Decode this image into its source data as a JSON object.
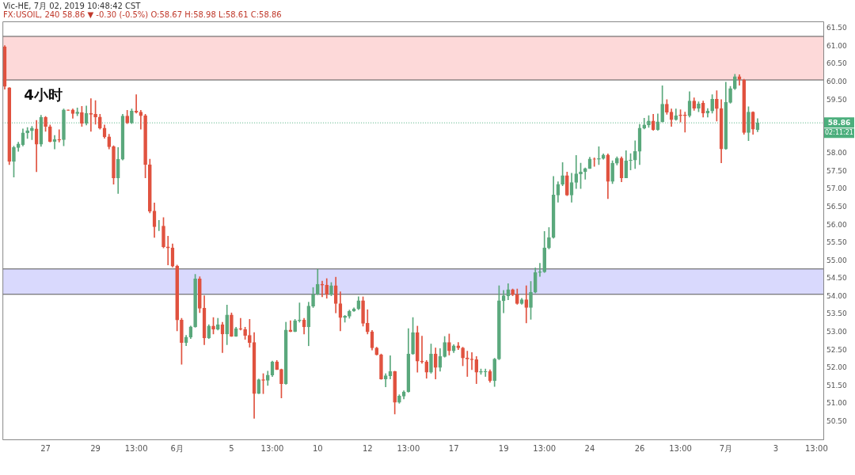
{
  "chart_data": {
    "type": "candlestick",
    "title": "Vic-HE, 7月 02, 2019 10:48:42 CST",
    "subtitle": "FX:USOIL, 240 58.86 ▼ -0.30 (-0.5%) O:58.67 H:58.98 L:58.61 C:58.86",
    "categories": [
      null,
      null,
      null,
      null,
      null,
      null,
      null,
      null,
      null,
      "27",
      null,
      null,
      null,
      null,
      null,
      null,
      null,
      null,
      null,
      null,
      "29",
      null,
      null,
      null,
      null,
      null,
      null,
      null,
      null,
      "13:00",
      null,
      null,
      null,
      null,
      null,
      null,
      null,
      null,
      "6月",
      null,
      null,
      null,
      null,
      null,
      null,
      null,
      null,
      null,
      null,
      null,
      "5",
      null,
      null,
      null,
      null,
      null,
      null,
      null,
      null,
      "13:00",
      null,
      null,
      null,
      null,
      null,
      null,
      null,
      null,
      null,
      "10",
      null,
      null,
      null,
      null,
      null,
      null,
      null,
      null,
      null,
      null,
      "12",
      null,
      null,
      null,
      null,
      null,
      null,
      null,
      null,
      "13:00",
      null,
      null,
      null,
      null,
      null,
      null,
      null,
      null,
      null,
      "17",
      null,
      null,
      null,
      null,
      null,
      null,
      null,
      null,
      null,
      null,
      "19",
      null,
      null,
      null,
      null,
      null,
      null,
      null,
      null,
      "13:00",
      null,
      null,
      null,
      null,
      null,
      null,
      null,
      null,
      null,
      "24",
      null,
      null,
      null,
      null,
      null,
      null,
      null,
      null,
      null,
      null,
      "26",
      null,
      null,
      null,
      null,
      null,
      null,
      null,
      null,
      "13:00",
      null,
      null,
      null,
      null,
      null,
      null,
      null,
      null,
      null,
      "7月",
      null,
      null,
      null,
      null,
      null,
      null,
      null,
      null,
      null,
      null,
      "3",
      null,
      null,
      null,
      null,
      null,
      null,
      null,
      null,
      "13:00",
      null
    ],
    "ohlc": [
      [
        60.99,
        61.02,
        59.8,
        59.88
      ],
      [
        59.84,
        59.85,
        57.69,
        57.78
      ],
      [
        57.78,
        58.21,
        57.34,
        58.17
      ],
      [
        58.17,
        58.32,
        58.06,
        58.27
      ],
      [
        58.25,
        58.69,
        58.21,
        58.58
      ],
      [
        58.58,
        58.73,
        58.42,
        58.64
      ],
      [
        58.64,
        58.76,
        58.39,
        58.71
      ],
      [
        58.69,
        58.93,
        57.49,
        58.26
      ],
      [
        58.26,
        59.07,
        58.2,
        59.01
      ],
      [
        59.01,
        59.04,
        58.62,
        58.76
      ],
      [
        58.75,
        58.8,
        58.32,
        58.34
      ],
      [
        58.34,
        58.51,
        58.13,
        58.39
      ],
      [
        58.39,
        58.67,
        58.32,
        58.38
      ],
      [
        58.39,
        59.25,
        58.22,
        59.22
      ],
      [
        59.22,
        59.22,
        59.21,
        59.21
      ],
      [
        59.22,
        59.25,
        58.99,
        59.12
      ],
      [
        59.12,
        59.28,
        59.06,
        59.16
      ],
      [
        59.15,
        59.32,
        58.76,
        58.85
      ],
      [
        58.85,
        59.33,
        58.8,
        59.12
      ],
      [
        59.12,
        59.54,
        58.62,
        59.1
      ],
      [
        59.1,
        59.48,
        58.82,
        59.02
      ],
      [
        59.02,
        59.1,
        58.68,
        58.71
      ],
      [
        58.71,
        58.8,
        58.43,
        58.47
      ],
      [
        58.47,
        58.54,
        58.13,
        58.19
      ],
      [
        58.19,
        58.22,
        57.14,
        57.32
      ],
      [
        57.32,
        58.17,
        56.88,
        57.84
      ],
      [
        57.84,
        59.1,
        57.82,
        59.05
      ],
      [
        59.05,
        59.21,
        58.84,
        58.86
      ],
      [
        58.86,
        59.25,
        58.84,
        59.19
      ],
      [
        59.19,
        59.65,
        59.13,
        59.16
      ],
      [
        59.16,
        59.21,
        58.68,
        59.06
      ],
      [
        59.06,
        59.1,
        57.32,
        57.69
      ],
      [
        57.69,
        57.84,
        56.34,
        56.39
      ],
      [
        56.39,
        56.62,
        55.65,
        55.95
      ],
      [
        55.97,
        56.13,
        55.84,
        55.97
      ],
      [
        55.97,
        56.21,
        55.36,
        55.39
      ],
      [
        55.39,
        55.69,
        54.88,
        55.36
      ],
      [
        55.36,
        55.47,
        54.82,
        54.85
      ],
      [
        54.85,
        54.88,
        53.04,
        53.34
      ],
      [
        53.34,
        53.39,
        52.1,
        52.71
      ],
      [
        52.71,
        52.91,
        52.62,
        52.86
      ],
      [
        52.86,
        53.17,
        52.82,
        53.15
      ],
      [
        53.15,
        54.62,
        53.14,
        54.49
      ],
      [
        54.49,
        54.55,
        53.55,
        53.67
      ],
      [
        53.67,
        54.02,
        52.65,
        52.84
      ],
      [
        52.84,
        53.21,
        52.82,
        53.17
      ],
      [
        53.17,
        53.41,
        52.95,
        53.08
      ],
      [
        53.08,
        53.39,
        53.06,
        53.21
      ],
      [
        53.21,
        53.28,
        52.43,
        52.95
      ],
      [
        52.95,
        53.76,
        52.65,
        53.48
      ],
      [
        53.48,
        53.54,
        52.88,
        52.88
      ],
      [
        52.88,
        53.14,
        52.88,
        53.1
      ],
      [
        53.1,
        53.39,
        53.06,
        53.08
      ],
      [
        53.08,
        53.14,
        52.8,
        52.91
      ],
      [
        52.91,
        53.36,
        52.58,
        52.71
      ],
      [
        52.71,
        52.99,
        50.59,
        51.28
      ],
      [
        51.28,
        51.69,
        51.28,
        51.67
      ],
      [
        51.67,
        51.84,
        51.28,
        51.65
      ],
      [
        51.65,
        51.91,
        51.51,
        51.8
      ],
      [
        51.8,
        52.19,
        51.76,
        52.17
      ],
      [
        52.17,
        52.21,
        51.95,
        51.96
      ],
      [
        51.96,
        51.97,
        51.16,
        51.56
      ],
      [
        51.56,
        53.28,
        51.54,
        53.06
      ],
      [
        53.06,
        53.32,
        53.01,
        53.02
      ],
      [
        53.02,
        53.36,
        53.01,
        53.32
      ],
      [
        53.32,
        53.82,
        53.28,
        53.34
      ],
      [
        53.34,
        53.39,
        52.95,
        53.15
      ],
      [
        53.15,
        53.84,
        52.62,
        53.73
      ],
      [
        53.73,
        54.25,
        53.69,
        54.06
      ],
      [
        54.06,
        54.76,
        54.05,
        54.34
      ],
      [
        54.34,
        54.43,
        53.99,
        54.32
      ],
      [
        54.32,
        54.5,
        53.95,
        54.06
      ],
      [
        54.06,
        54.39,
        54.02,
        54.3
      ],
      [
        54.3,
        54.54,
        53.54,
        53.8
      ],
      [
        53.8,
        54.13,
        53.04,
        53.41
      ],
      [
        53.41,
        53.47,
        53.28,
        53.45
      ],
      [
        53.45,
        53.62,
        53.39,
        53.59
      ],
      [
        53.59,
        53.68,
        53.58,
        53.65
      ],
      [
        53.65,
        53.99,
        53.63,
        53.88
      ],
      [
        53.88,
        53.99,
        53.17,
        53.25
      ],
      [
        53.25,
        53.63,
        52.95,
        53.01
      ],
      [
        53.01,
        53.05,
        52.5,
        52.56
      ],
      [
        52.56,
        52.58,
        52.36,
        52.37
      ],
      [
        52.37,
        52.39,
        51.68,
        51.69
      ],
      [
        51.69,
        51.84,
        51.47,
        51.78
      ],
      [
        51.78,
        52.34,
        51.69,
        51.9
      ],
      [
        51.9,
        51.91,
        50.71,
        51.04
      ],
      [
        51.04,
        51.25,
        51.01,
        51.21
      ],
      [
        51.21,
        51.36,
        51.13,
        51.33
      ],
      [
        51.33,
        53.1,
        51.32,
        52.39
      ],
      [
        52.39,
        53.41,
        52.38,
        52.99
      ],
      [
        52.99,
        53.17,
        51.88,
        52.19
      ],
      [
        52.19,
        52.89,
        52.13,
        52.17
      ],
      [
        52.17,
        52.21,
        51.71,
        51.88
      ],
      [
        51.88,
        52.67,
        51.85,
        52.39
      ],
      [
        52.39,
        52.56,
        51.69,
        52.01
      ],
      [
        52.01,
        52.54,
        51.91,
        52.32
      ],
      [
        52.32,
        52.88,
        52.3,
        52.71
      ],
      [
        52.71,
        52.95,
        52.36,
        52.48
      ],
      [
        52.48,
        52.65,
        52.43,
        52.62
      ],
      [
        52.62,
        52.71,
        52.51,
        52.56
      ],
      [
        52.56,
        52.58,
        52.06,
        52.28
      ],
      [
        52.28,
        52.47,
        51.76,
        52.25
      ],
      [
        52.25,
        52.43,
        51.95,
        52.23
      ],
      [
        52.23,
        52.32,
        51.56,
        51.88
      ],
      [
        51.88,
        51.97,
        51.82,
        51.9
      ],
      [
        51.89,
        51.97,
        51.76,
        51.9
      ],
      [
        51.9,
        51.95,
        51.6,
        51.64
      ],
      [
        51.64,
        52.27,
        51.48,
        52.25
      ],
      [
        52.25,
        54.3,
        52.23,
        53.88
      ],
      [
        53.88,
        54.17,
        53.54,
        54.02
      ],
      [
        54.02,
        54.36,
        53.91,
        54.19
      ],
      [
        54.19,
        54.21,
        54.02,
        54.05
      ],
      [
        54.05,
        54.21,
        53.78,
        53.8
      ],
      [
        53.8,
        53.95,
        53.78,
        53.91
      ],
      [
        53.91,
        54.3,
        53.26,
        53.69
      ],
      [
        53.69,
        54.42,
        53.36,
        54.12
      ],
      [
        54.12,
        54.8,
        54.1,
        54.67
      ],
      [
        54.67,
        54.93,
        54.56,
        54.69
      ],
      [
        54.69,
        55.82,
        54.67,
        55.36
      ],
      [
        55.36,
        55.93,
        55.33,
        55.65
      ],
      [
        55.65,
        57.36,
        55.63,
        56.84
      ],
      [
        56.84,
        57.21,
        56.64,
        57.14
      ],
      [
        57.14,
        57.75,
        57.1,
        57.38
      ],
      [
        57.38,
        57.48,
        56.82,
        56.84
      ],
      [
        56.84,
        57.45,
        56.64,
        57.19
      ],
      [
        57.19,
        57.95,
        57.02,
        57.43
      ],
      [
        57.43,
        57.73,
        57.02,
        57.49
      ],
      [
        57.49,
        57.6,
        57.28,
        57.58
      ],
      [
        57.58,
        57.9,
        57.58,
        57.85
      ],
      [
        57.85,
        57.88,
        57.64,
        57.84
      ],
      [
        57.84,
        58.19,
        57.69,
        57.86
      ],
      [
        57.86,
        57.99,
        57.84,
        57.96
      ],
      [
        57.96,
        57.99,
        56.74,
        57.22
      ],
      [
        57.22,
        57.8,
        57.16,
        57.73
      ],
      [
        57.73,
        57.91,
        57.68,
        57.87
      ],
      [
        57.87,
        57.91,
        57.21,
        57.32
      ],
      [
        57.32,
        58.08,
        57.32,
        57.8
      ],
      [
        57.8,
        58.0,
        57.54,
        57.82
      ],
      [
        57.82,
        58.36,
        57.58,
        58.06
      ],
      [
        58.06,
        58.82,
        57.69,
        58.71
      ],
      [
        58.71,
        58.99,
        58.69,
        58.8
      ],
      [
        58.8,
        59.06,
        58.73,
        58.91
      ],
      [
        58.91,
        59.1,
        58.65,
        58.67
      ],
      [
        58.67,
        59.11,
        58.65,
        58.89
      ],
      [
        58.89,
        59.9,
        58.88,
        59.38
      ],
      [
        59.38,
        59.51,
        59.1,
        59.16
      ],
      [
        59.16,
        59.25,
        58.76,
        58.95
      ],
      [
        58.95,
        59.25,
        58.93,
        59.06
      ],
      [
        59.08,
        59.23,
        58.88,
        59.06
      ],
      [
        59.08,
        59.16,
        58.6,
        59.06
      ],
      [
        59.06,
        59.73,
        59.02,
        59.47
      ],
      [
        59.47,
        59.56,
        59.21,
        59.27
      ],
      [
        59.27,
        59.45,
        59.17,
        59.39
      ],
      [
        59.41,
        59.47,
        59.02,
        59.13
      ],
      [
        59.13,
        59.26,
        59.02,
        59.19
      ],
      [
        59.19,
        59.65,
        59.13,
        59.52
      ],
      [
        59.52,
        59.76,
        58.91,
        59.26
      ],
      [
        59.26,
        59.51,
        57.74,
        58.13
      ],
      [
        58.13,
        60.0,
        58.12,
        59.43
      ],
      [
        59.43,
        59.88,
        59.41,
        59.82
      ],
      [
        59.82,
        60.22,
        59.79,
        60.15
      ],
      [
        60.15,
        60.21,
        59.91,
        60.08
      ],
      [
        60.06,
        60.08,
        58.54,
        58.59
      ],
      [
        58.59,
        59.31,
        58.36,
        59.16
      ],
      [
        59.16,
        59.17,
        58.54,
        58.68
      ],
      [
        58.67,
        58.98,
        58.61,
        58.86
      ],
      null,
      null,
      null,
      null,
      null,
      null,
      null,
      null,
      null,
      null,
      null,
      null,
      null,
      null
    ],
    "ylim": [
      50.0,
      61.7
    ],
    "yticks": [
      {
        "value": 50.5,
        "label": "50.50"
      },
      {
        "value": 51,
        "label": "51.00"
      },
      {
        "value": 51.5,
        "label": "51.50"
      },
      {
        "value": 52,
        "label": "52.00"
      },
      {
        "value": 52.5,
        "label": "52.50"
      },
      {
        "value": 53,
        "label": "53.00"
      },
      {
        "value": 53.5,
        "label": "53.50"
      },
      {
        "value": 54,
        "label": "54.00"
      },
      {
        "value": 54.5,
        "label": "54.50"
      },
      {
        "value": 55,
        "label": "55.00"
      },
      {
        "value": 55.5,
        "label": "55.50"
      },
      {
        "value": 56,
        "label": "56.00"
      },
      {
        "value": 56.5,
        "label": "56.50"
      },
      {
        "value": 57,
        "label": "57.00"
      },
      {
        "value": 57.5,
        "label": "57.50"
      },
      {
        "value": 58,
        "label": "58.00"
      },
      {
        "value": 59.5,
        "label": "59.50"
      },
      {
        "value": 60,
        "label": "60.00"
      },
      {
        "value": 60.5,
        "label": "60.50"
      },
      {
        "value": 61,
        "label": "61.00"
      },
      {
        "value": 61.5,
        "label": "61.50"
      }
    ],
    "bands": [
      {
        "axis": "y",
        "from": 60.06,
        "to": 61.28,
        "color": "#fdd9d9"
      },
      {
        "axis": "y",
        "from": 54.06,
        "to": 54.77,
        "color": "#d9d9fd"
      }
    ],
    "ref_lines": [
      {
        "axis": "y",
        "value": 58.86,
        "label": "58.86",
        "color": "#4caf7d",
        "line_style": "dotted"
      }
    ],
    "annotations": [
      "4小时",
      "02:11:21"
    ],
    "grid": false,
    "legend": false
  }
}
